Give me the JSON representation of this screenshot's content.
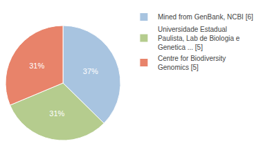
{
  "chart_data": {
    "type": "pie",
    "categories": [
      "Mined from GenBank, NCBI [6]",
      "Universidade Estadual\nPaulista, Lab de Biologia e\nGenetica ... [5]",
      "Centre for Biodiversity\nGenomics [5]"
    ],
    "values": [
      37,
      31,
      31
    ],
    "value_labels": [
      "37%",
      "31%",
      "31%"
    ],
    "colors": [
      "#a8c4e0",
      "#b5cc8e",
      "#e8836a"
    ],
    "data_labels": true,
    "legend": "upper right"
  }
}
